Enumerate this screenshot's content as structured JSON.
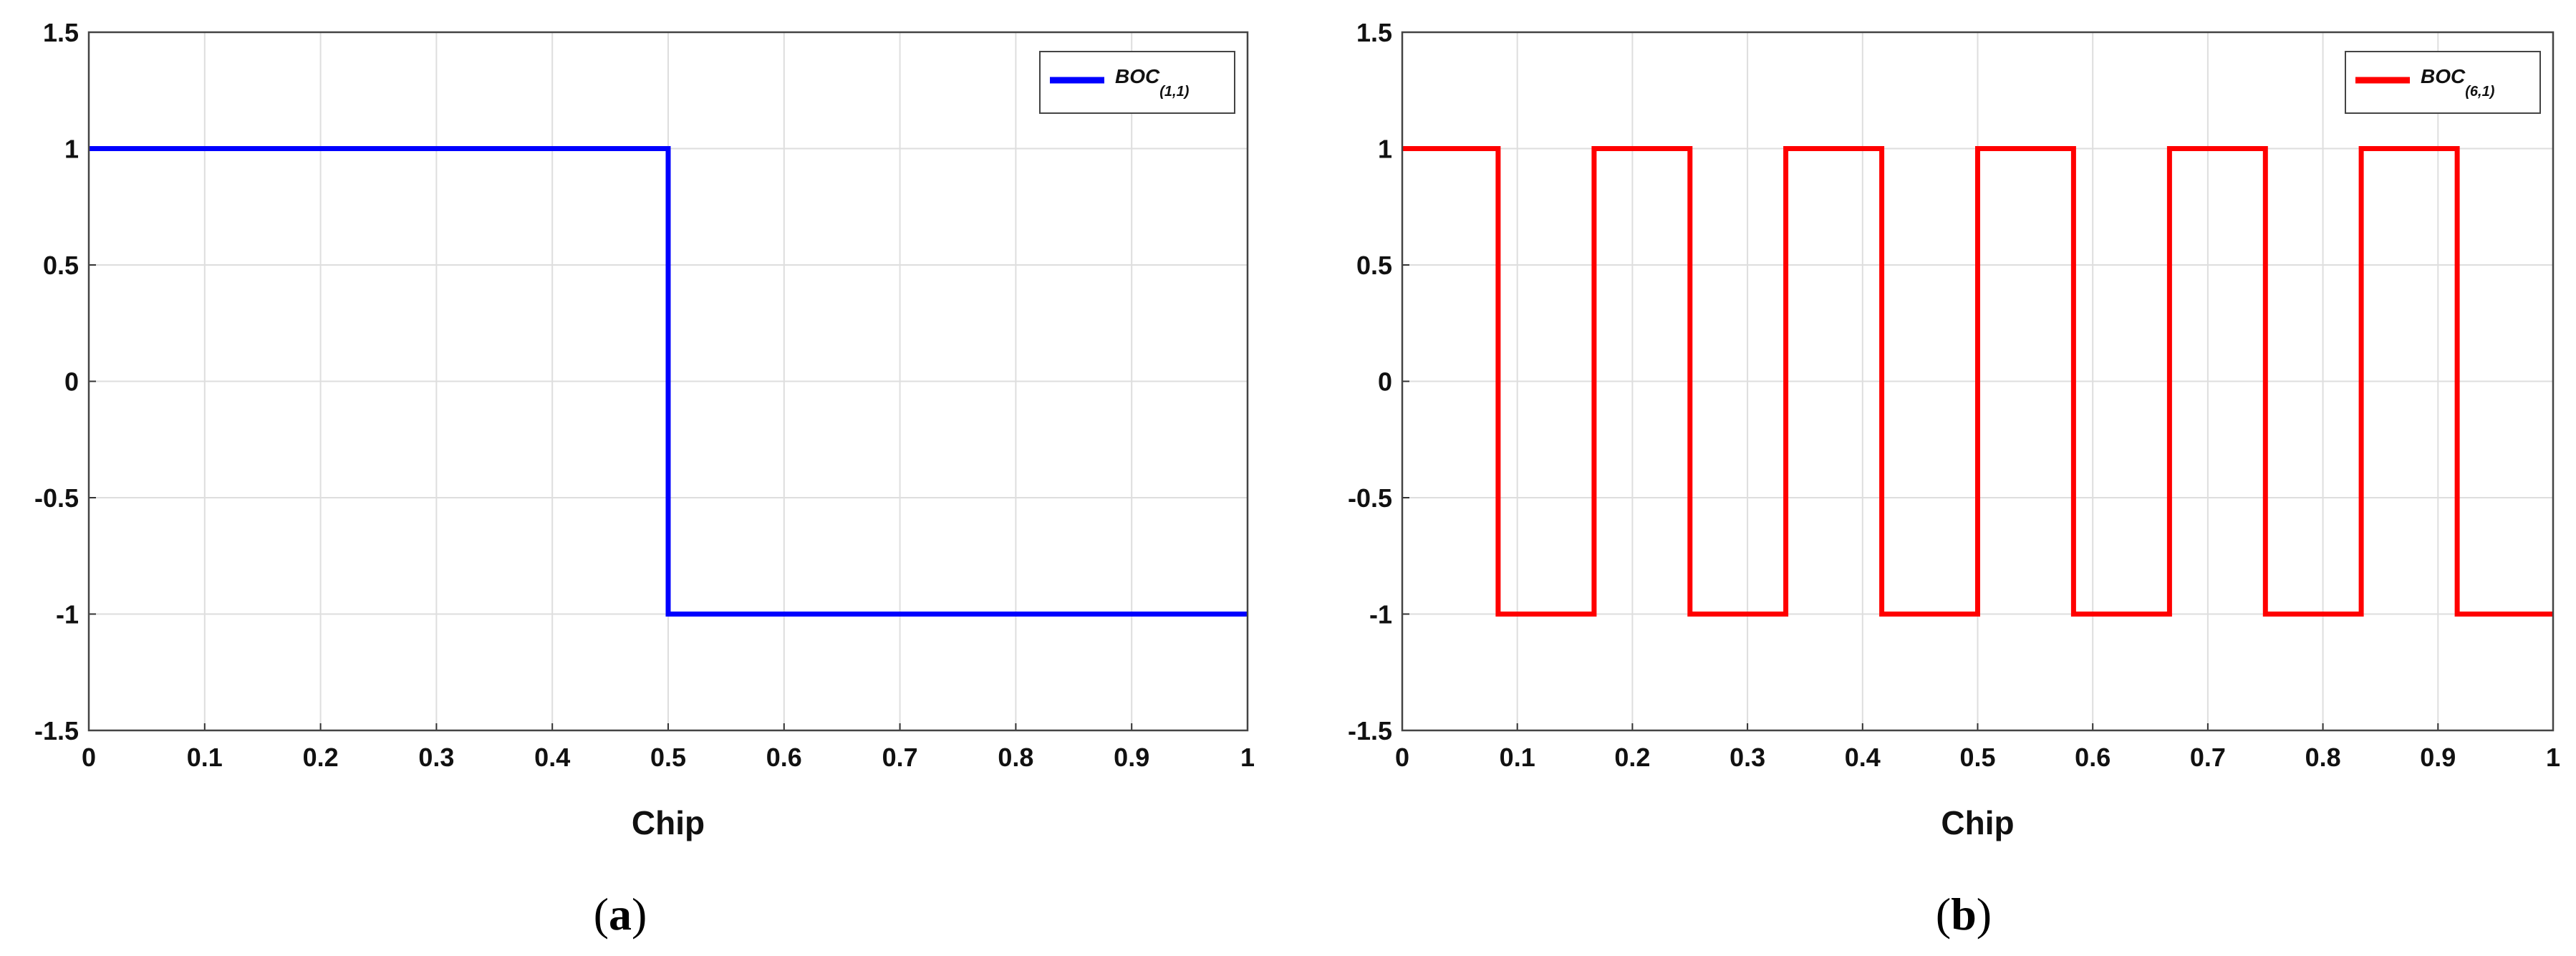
{
  "chart_data": [
    {
      "type": "line",
      "panel_label": "a",
      "xlabel": "Chip",
      "ylabel": "",
      "xlim": [
        0,
        1
      ],
      "ylim": [
        -1.5,
        1.5
      ],
      "xticks": [
        "0",
        "0.1",
        "0.2",
        "0.3",
        "0.4",
        "0.5",
        "0.6",
        "0.7",
        "0.8",
        "0.9",
        "1"
      ],
      "yticks": [
        "1.5",
        "1",
        "0.5",
        "0",
        "-0.5",
        "-1",
        "-1.5"
      ],
      "grid": true,
      "legend_position": "top-right",
      "series": [
        {
          "name": "BOC",
          "name_subscript": "(1,1)",
          "color": "#0000ff",
          "x": [
            0,
            0.5,
            0.5,
            1
          ],
          "y": [
            1,
            1,
            -1,
            -1
          ]
        }
      ]
    },
    {
      "type": "line",
      "panel_label": "b",
      "xlabel": "Chip",
      "ylabel": "",
      "xlim": [
        0,
        1
      ],
      "ylim": [
        -1.5,
        1.5
      ],
      "xticks": [
        "0",
        "0.1",
        "0.2",
        "0.3",
        "0.4",
        "0.5",
        "0.6",
        "0.7",
        "0.8",
        "0.9",
        "1"
      ],
      "yticks": [
        "1.5",
        "1",
        "0.5",
        "0",
        "-0.5",
        "-1",
        "-1.5"
      ],
      "grid": true,
      "legend_position": "top-right",
      "series": [
        {
          "name": "BOC",
          "name_subscript": "(6,1)",
          "color": "#ff0000",
          "x": [
            0,
            0.0833,
            0.0833,
            0.1667,
            0.1667,
            0.25,
            0.25,
            0.3333,
            0.3333,
            0.4167,
            0.4167,
            0.5,
            0.5,
            0.5833,
            0.5833,
            0.6667,
            0.6667,
            0.75,
            0.75,
            0.8333,
            0.8333,
            0.9167,
            0.9167,
            1
          ],
          "y": [
            1,
            1,
            -1,
            -1,
            1,
            1,
            -1,
            -1,
            1,
            1,
            -1,
            -1,
            1,
            1,
            -1,
            -1,
            1,
            1,
            -1,
            -1,
            1,
            1,
            -1,
            -1
          ]
        }
      ]
    }
  ]
}
